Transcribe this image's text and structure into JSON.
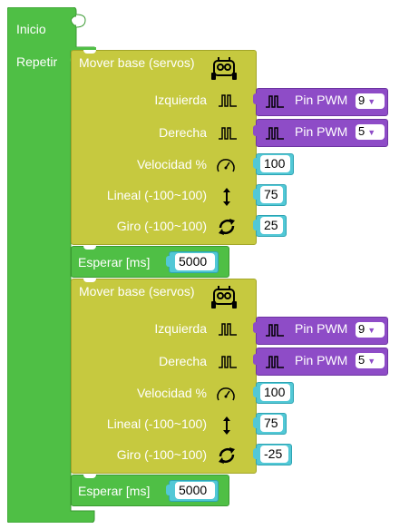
{
  "start_block": {
    "label": "Inicio"
  },
  "loop_block": {
    "label": "Repetir"
  },
  "sequence": [
    {
      "mover": {
        "title": "Mover base (servos)",
        "icon": "robot-icon",
        "left_label": "Izquierda",
        "right_label": "Derecha",
        "speed_label": "Velocidad %",
        "linear_label": "Lineal (-100~100)",
        "turn_label": "Giro (-100~100)",
        "left_pin_label": "Pin PWM",
        "left_pin_value": "9",
        "right_pin_label": "Pin PWM",
        "right_pin_value": "5",
        "speed_value": "100",
        "linear_value": "75",
        "turn_value": "25"
      },
      "wait": {
        "label": "Esperar [ms]",
        "value": "5000"
      }
    },
    {
      "mover": {
        "title": "Mover base (servos)",
        "icon": "robot-icon",
        "left_label": "Izquierda",
        "right_label": "Derecha",
        "speed_label": "Velocidad %",
        "linear_label": "Lineal (-100~100)",
        "turn_label": "Giro (-100~100)",
        "left_pin_label": "Pin PWM",
        "left_pin_value": "9",
        "right_pin_label": "Pin PWM",
        "right_pin_value": "5",
        "speed_value": "100",
        "linear_value": "75",
        "turn_value": "-25"
      },
      "wait": {
        "label": "Esperar [ms]",
        "value": "5000"
      }
    }
  ],
  "colors": {
    "control_green": "#4fbf45",
    "motion_yellow": "#c6c93f",
    "pin_purple": "#8e4cc7",
    "number_cyan": "#52c8d6",
    "dropdown_arrow": "#8e4cc7"
  }
}
